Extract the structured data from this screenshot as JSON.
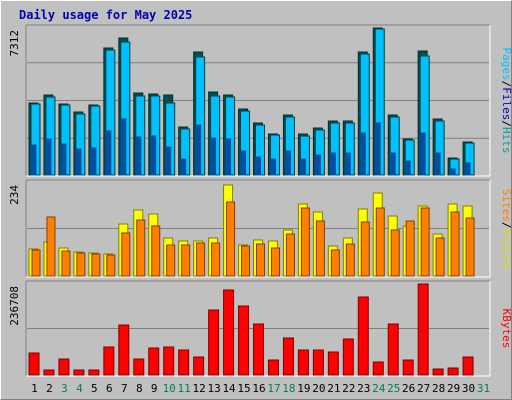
{
  "title": "Daily usage for May 2025",
  "colors": {
    "pages": "#00b0b0",
    "files": "#00c0e0",
    "hits": "#00c0ff",
    "hits_dark": "#005050",
    "files_dark": "#006f80",
    "sites": "#ff8000",
    "visits": "#ffff00",
    "kbytes": "#ff0000",
    "weekend_label": "#00804f",
    "weekday_label": "#000000",
    "label_hits": "#00a0a0",
    "label_files": "#0000c0",
    "label_pages": "#00c0ff",
    "label_visits": "#e0e000",
    "label_sites": "#ff8000",
    "label_kbytes": "#ff0000"
  },
  "chart_data": [
    {
      "type": "bar",
      "name": "hits-files-pages",
      "max_label": "7312",
      "ymax": 7312,
      "x": [
        1,
        2,
        3,
        4,
        5,
        6,
        7,
        8,
        9,
        10,
        11,
        12,
        13,
        14,
        15,
        16,
        17,
        18,
        19,
        20,
        21,
        22,
        23,
        24,
        25,
        26,
        27,
        28,
        29,
        30,
        31
      ],
      "series": [
        {
          "name": "Hits",
          "values": [
            3600,
            4000,
            3550,
            3120,
            3500,
            6300,
            6800,
            4100,
            4050,
            4000,
            2400,
            6100,
            4150,
            4000,
            3300,
            2600,
            2050,
            3000,
            2020,
            2350,
            2700,
            2700,
            6100,
            7312,
            3000,
            1800,
            6150,
            2800,
            850,
            1650,
            0
          ]
        },
        {
          "name": "Files",
          "values": [
            3550,
            3900,
            3500,
            3050,
            3450,
            6200,
            6600,
            3950,
            3950,
            3600,
            2300,
            5850,
            3950,
            3900,
            3200,
            2500,
            2000,
            2900,
            1950,
            2250,
            2600,
            2600,
            6000,
            7250,
            2900,
            1750,
            5900,
            2700,
            820,
            1600,
            0
          ]
        },
        {
          "name": "Pages",
          "values": [
            1500,
            1800,
            1550,
            1300,
            1350,
            2200,
            2800,
            1900,
            1950,
            1400,
            800,
            2500,
            1850,
            1800,
            1200,
            900,
            800,
            1200,
            800,
            1000,
            1100,
            1100,
            2100,
            2600,
            1100,
            700,
            2100,
            1100,
            300,
            600,
            0
          ]
        }
      ]
    },
    {
      "type": "bar",
      "name": "visits-sites",
      "max_label": "234",
      "ymax": 234,
      "x": [
        1,
        2,
        3,
        4,
        5,
        6,
        7,
        8,
        9,
        10,
        11,
        12,
        13,
        14,
        15,
        16,
        17,
        18,
        19,
        20,
        21,
        22,
        23,
        24,
        25,
        26,
        27,
        28,
        29,
        30,
        31
      ],
      "series": [
        {
          "name": "Visits",
          "values": [
            68,
            85,
            70,
            60,
            58,
            55,
            130,
            165,
            155,
            95,
            88,
            88,
            95,
            230,
            78,
            90,
            88,
            115,
            180,
            160,
            75,
            95,
            168,
            210,
            150,
            125,
            175,
            105,
            180,
            175,
            0
          ]
        },
        {
          "name": "Sites",
          "values": [
            65,
            148,
            62,
            58,
            55,
            52,
            108,
            140,
            125,
            78,
            78,
            82,
            82,
            185,
            75,
            80,
            70,
            105,
            170,
            138,
            65,
            80,
            135,
            170,
            115,
            138,
            170,
            95,
            160,
            145,
            0
          ]
        }
      ]
    },
    {
      "type": "bar",
      "name": "kbytes",
      "max_label": "236708",
      "ymax": 236708,
      "x": [
        1,
        2,
        3,
        4,
        5,
        6,
        7,
        8,
        9,
        10,
        11,
        12,
        13,
        14,
        15,
        16,
        17,
        18,
        19,
        20,
        21,
        22,
        23,
        24,
        25,
        26,
        27,
        28,
        29,
        30,
        31
      ],
      "series": [
        {
          "name": "KBytes",
          "values": [
            56000,
            14000,
            42000,
            13000,
            12000,
            74000,
            129000,
            42000,
            71000,
            74000,
            66000,
            48000,
            169000,
            220000,
            180000,
            133000,
            40000,
            96000,
            64000,
            66000,
            60000,
            93000,
            203000,
            34000,
            133000,
            40000,
            236708,
            15000,
            17000,
            47000,
            0
          ]
        }
      ]
    }
  ],
  "side_labels": {
    "top": [
      {
        "text": "Pages",
        "color_key": "label_pages"
      },
      {
        "text": "/",
        "color_key": "weekday_label"
      },
      {
        "text": "Files",
        "color_key": "label_files"
      },
      {
        "text": "/",
        "color_key": "weekday_label"
      },
      {
        "text": "Hits",
        "color_key": "label_hits"
      }
    ],
    "middle": [
      {
        "text": "Sites",
        "color_key": "label_sites"
      },
      {
        "text": "/",
        "color_key": "weekday_label"
      },
      {
        "text": "Visits",
        "color_key": "label_visits"
      }
    ],
    "bottom": [
      {
        "text": "KBytes",
        "color_key": "label_kbytes"
      }
    ]
  },
  "weekend_days": [
    3,
    4,
    10,
    11,
    17,
    18,
    24,
    25,
    31
  ]
}
